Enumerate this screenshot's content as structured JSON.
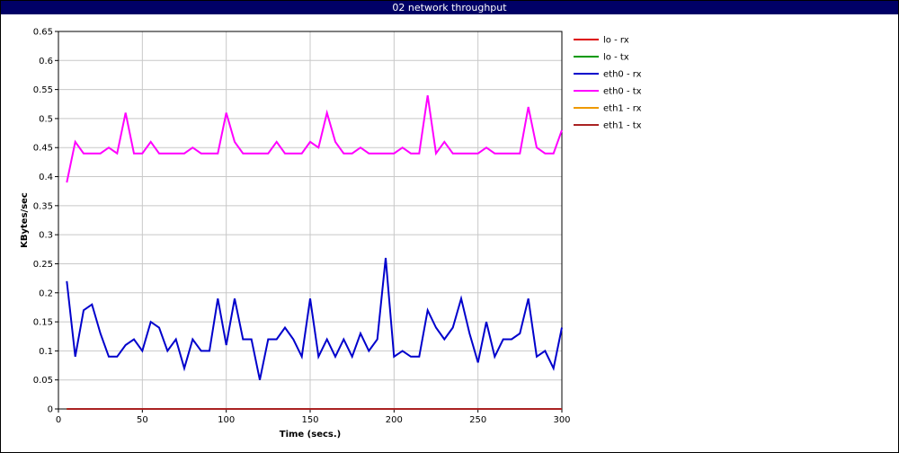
{
  "window": {
    "title": "02 network throughput"
  },
  "chart_data": {
    "type": "line",
    "title": "02 network throughput",
    "xlabel": "Time (secs.)",
    "ylabel": "KBytes/sec",
    "xlim": [
      0,
      300
    ],
    "ylim": [
      0,
      0.65
    ],
    "xticks": [
      0,
      50,
      100,
      150,
      200,
      250,
      300
    ],
    "yticks": [
      0,
      0.05,
      0.1,
      0.15,
      0.2,
      0.25,
      0.3,
      0.35,
      0.4,
      0.45,
      0.5,
      0.55,
      0.6,
      0.65
    ],
    "grid": true,
    "legend_position": "right",
    "x": [
      5,
      10,
      15,
      20,
      25,
      30,
      35,
      40,
      45,
      50,
      55,
      60,
      65,
      70,
      75,
      80,
      85,
      90,
      95,
      100,
      105,
      110,
      115,
      120,
      125,
      130,
      135,
      140,
      145,
      150,
      155,
      160,
      165,
      170,
      175,
      180,
      185,
      190,
      195,
      200,
      205,
      210,
      215,
      220,
      225,
      230,
      235,
      240,
      245,
      250,
      255,
      260,
      265,
      270,
      275,
      280,
      285,
      290,
      295,
      300
    ],
    "series": [
      {
        "name": "lo - rx",
        "color": "#dd0000",
        "values": [
          0,
          0,
          0,
          0,
          0,
          0,
          0,
          0,
          0,
          0,
          0,
          0,
          0,
          0,
          0,
          0,
          0,
          0,
          0,
          0,
          0,
          0,
          0,
          0,
          0,
          0,
          0,
          0,
          0,
          0,
          0,
          0,
          0,
          0,
          0,
          0,
          0,
          0,
          0,
          0,
          0,
          0,
          0,
          0,
          0,
          0,
          0,
          0,
          0,
          0,
          0,
          0,
          0,
          0,
          0,
          0,
          0,
          0,
          0,
          0
        ]
      },
      {
        "name": "lo - tx",
        "color": "#009900",
        "values": [
          0,
          0,
          0,
          0,
          0,
          0,
          0,
          0,
          0,
          0,
          0,
          0,
          0,
          0,
          0,
          0,
          0,
          0,
          0,
          0,
          0,
          0,
          0,
          0,
          0,
          0,
          0,
          0,
          0,
          0,
          0,
          0,
          0,
          0,
          0,
          0,
          0,
          0,
          0,
          0,
          0,
          0,
          0,
          0,
          0,
          0,
          0,
          0,
          0,
          0,
          0,
          0,
          0,
          0,
          0,
          0,
          0,
          0,
          0,
          0
        ]
      },
      {
        "name": "eth0 - rx",
        "color": "#0000cc",
        "values": [
          0.22,
          0.09,
          0.17,
          0.18,
          0.13,
          0.09,
          0.09,
          0.11,
          0.12,
          0.1,
          0.15,
          0.14,
          0.1,
          0.12,
          0.07,
          0.12,
          0.1,
          0.1,
          0.19,
          0.11,
          0.19,
          0.12,
          0.12,
          0.05,
          0.12,
          0.12,
          0.14,
          0.12,
          0.09,
          0.19,
          0.09,
          0.12,
          0.09,
          0.12,
          0.09,
          0.13,
          0.1,
          0.12,
          0.26,
          0.09,
          0.1,
          0.09,
          0.09,
          0.17,
          0.14,
          0.12,
          0.14,
          0.19,
          0.13,
          0.08,
          0.15,
          0.09,
          0.12,
          0.12,
          0.13,
          0.19,
          0.09,
          0.1,
          0.07,
          0.14
        ]
      },
      {
        "name": "eth0 - tx",
        "color": "#ff00ff",
        "values": [
          0.39,
          0.46,
          0.44,
          0.44,
          0.44,
          0.45,
          0.44,
          0.51,
          0.44,
          0.44,
          0.46,
          0.44,
          0.44,
          0.44,
          0.44,
          0.45,
          0.44,
          0.44,
          0.44,
          0.51,
          0.46,
          0.44,
          0.44,
          0.44,
          0.44,
          0.46,
          0.44,
          0.44,
          0.44,
          0.46,
          0.45,
          0.51,
          0.46,
          0.44,
          0.44,
          0.45,
          0.44,
          0.44,
          0.44,
          0.44,
          0.45,
          0.44,
          0.44,
          0.54,
          0.44,
          0.46,
          0.44,
          0.44,
          0.44,
          0.44,
          0.45,
          0.44,
          0.44,
          0.44,
          0.44,
          0.52,
          0.45,
          0.44,
          0.44,
          0.48
        ]
      },
      {
        "name": "eth1 - rx",
        "color": "#ee9900",
        "values": [
          0,
          0,
          0,
          0,
          0,
          0,
          0,
          0,
          0,
          0,
          0,
          0,
          0,
          0,
          0,
          0,
          0,
          0,
          0,
          0,
          0,
          0,
          0,
          0,
          0,
          0,
          0,
          0,
          0,
          0,
          0,
          0,
          0,
          0,
          0,
          0,
          0,
          0,
          0,
          0,
          0,
          0,
          0,
          0,
          0,
          0,
          0,
          0,
          0,
          0,
          0,
          0,
          0,
          0,
          0,
          0,
          0,
          0,
          0,
          0
        ]
      },
      {
        "name": "eth1 - tx",
        "color": "#aa2222",
        "values": [
          0,
          0,
          0,
          0,
          0,
          0,
          0,
          0,
          0,
          0,
          0,
          0,
          0,
          0,
          0,
          0,
          0,
          0,
          0,
          0,
          0,
          0,
          0,
          0,
          0,
          0,
          0,
          0,
          0,
          0,
          0,
          0,
          0,
          0,
          0,
          0,
          0,
          0,
          0,
          0,
          0,
          0,
          0,
          0,
          0,
          0,
          0,
          0,
          0,
          0,
          0,
          0,
          0,
          0,
          0,
          0,
          0,
          0,
          0,
          0
        ]
      }
    ]
  }
}
